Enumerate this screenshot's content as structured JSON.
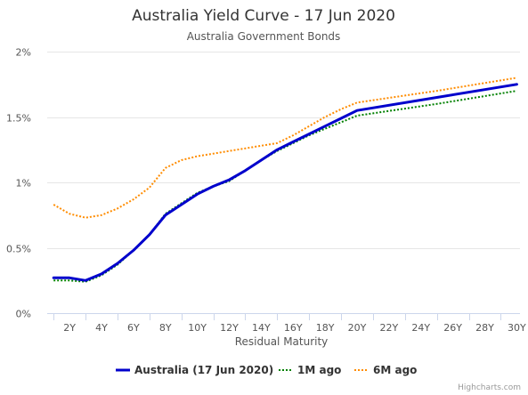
{
  "chart_data": {
    "type": "line",
    "title": "Australia Yield Curve - 17 Jun 2020",
    "subtitle": "Australia Government Bonds",
    "xlabel": "Residual Maturity",
    "ylabel": "",
    "x_ticks": [
      "2Y",
      "4Y",
      "6Y",
      "8Y",
      "10Y",
      "12Y",
      "14Y",
      "16Y",
      "18Y",
      "20Y",
      "22Y",
      "24Y",
      "26Y",
      "28Y",
      "30Y"
    ],
    "y_ticks": [
      "0%",
      "0.5%",
      "1%",
      "1.5%",
      "2%"
    ],
    "xlim": [
      0.6,
      30.2
    ],
    "ylim": [
      0,
      2
    ],
    "grid": true,
    "legend_position": "bottom",
    "credits": "Highcharts.com",
    "series": [
      {
        "name": "Australia (17 Jun 2020)",
        "style": "solid",
        "color": "#0000cc",
        "x": [
          1,
          2,
          3,
          4,
          5,
          6,
          7,
          8,
          9,
          10,
          11,
          12,
          13,
          14,
          15,
          16,
          17,
          18,
          19,
          20,
          25,
          30
        ],
        "values": [
          0.27,
          0.27,
          0.25,
          0.3,
          0.38,
          0.48,
          0.6,
          0.75,
          0.83,
          0.91,
          0.97,
          1.02,
          1.09,
          1.17,
          1.25,
          1.31,
          1.37,
          1.43,
          1.49,
          1.55,
          1.65,
          1.75
        ]
      },
      {
        "name": "1M ago",
        "style": "dotted",
        "color": "#008000",
        "x": [
          1,
          2,
          3,
          4,
          5,
          6,
          7,
          8,
          9,
          10,
          11,
          12,
          13,
          14,
          15,
          16,
          17,
          18,
          19,
          20,
          25,
          30
        ],
        "values": [
          0.25,
          0.25,
          0.24,
          0.29,
          0.37,
          0.48,
          0.6,
          0.76,
          0.84,
          0.92,
          0.97,
          1.01,
          1.09,
          1.17,
          1.24,
          1.3,
          1.36,
          1.41,
          1.46,
          1.51,
          1.6,
          1.7
        ]
      },
      {
        "name": "6M ago",
        "style": "dotted",
        "color": "#ff8c00",
        "x": [
          1,
          2,
          3,
          4,
          5,
          6,
          7,
          8,
          9,
          10,
          11,
          12,
          13,
          14,
          15,
          16,
          17,
          18,
          19,
          20,
          25,
          30
        ],
        "values": [
          0.83,
          0.76,
          0.73,
          0.75,
          0.8,
          0.87,
          0.96,
          1.11,
          1.17,
          1.2,
          1.22,
          1.24,
          1.26,
          1.28,
          1.3,
          1.36,
          1.43,
          1.5,
          1.56,
          1.61,
          1.7,
          1.8
        ]
      }
    ]
  }
}
